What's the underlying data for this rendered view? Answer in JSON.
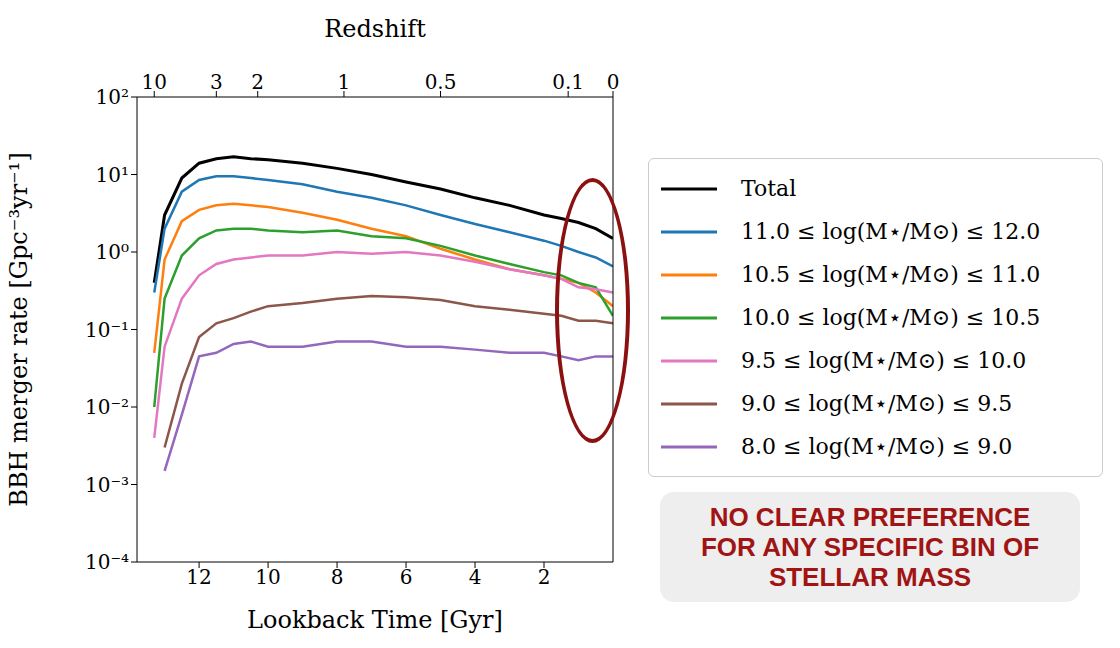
{
  "chart_data": {
    "type": "line",
    "xlabel": "Lookback Time [Gyr]",
    "ylabel": "BBH merger rate [Gpc⁻³yr⁻¹]",
    "x2label": "Redshift",
    "annotation": "NO CLEAR PREFERENCE FOR ANY SPECIFIC BIN OF STELLAR MASS",
    "log": "y",
    "grid": false,
    "legend": "right",
    "xlim": [
      13.8,
      0
    ],
    "xticks": [
      12,
      10,
      8,
      6,
      4,
      2
    ],
    "x2ticks": [
      {
        "value": 13.3,
        "label": "10"
      },
      {
        "value": 11.5,
        "label": "3"
      },
      {
        "value": 10.3,
        "label": "2"
      },
      {
        "value": 7.8,
        "label": "1"
      },
      {
        "value": 5.0,
        "label": "0.5"
      },
      {
        "value": 1.3,
        "label": "0.1"
      },
      {
        "value": 0,
        "label": "0"
      }
    ],
    "ylim": [
      0.0001,
      100
    ],
    "yticks": [
      {
        "value": 0.0001,
        "label": "10⁻⁴"
      },
      {
        "value": 0.001,
        "label": "10⁻³"
      },
      {
        "value": 0.01,
        "label": "10⁻²"
      },
      {
        "value": 0.1,
        "label": "10⁻¹"
      },
      {
        "value": 1,
        "label": "10⁰"
      },
      {
        "value": 10,
        "label": "10¹"
      },
      {
        "value": 100,
        "label": "10²"
      }
    ],
    "x": [
      13.3,
      13.0,
      12.5,
      12,
      11.5,
      11,
      10.5,
      10,
      9,
      8,
      7,
      6,
      5,
      4,
      3,
      2,
      1.5,
      1,
      0.5,
      0
    ],
    "series": [
      {
        "name": "Total",
        "color": "#000000",
        "values": [
          0.4,
          3,
          9,
          14,
          16,
          17,
          16,
          15.5,
          14,
          12,
          10,
          8,
          6.5,
          5,
          4,
          3,
          2.7,
          2.4,
          2,
          1.5
        ]
      },
      {
        "name": "11.0 ≤ log(M⋆/M⊙) ≤ 12.0",
        "color": "#1f77b4",
        "values": [
          0.3,
          2,
          6,
          8.5,
          9.5,
          9.5,
          9,
          8.5,
          7.5,
          6,
          5,
          4,
          3,
          2.3,
          1.8,
          1.4,
          1.2,
          1.0,
          0.85,
          0.65
        ]
      },
      {
        "name": "10.5 ≤ log(M⋆/M⊙) ≤ 11.0",
        "color": "#ff7f0e",
        "values": [
          0.05,
          0.8,
          2.5,
          3.5,
          4.0,
          4.2,
          4.0,
          3.8,
          3.2,
          2.6,
          2.0,
          1.6,
          1.1,
          0.8,
          0.6,
          0.5,
          0.45,
          0.4,
          0.3,
          0.2
        ]
      },
      {
        "name": "10.0 ≤ log(M⋆/M⊙) ≤ 10.5",
        "color": "#2ca02c",
        "values": [
          0.01,
          0.25,
          0.9,
          1.5,
          1.9,
          2.0,
          2.0,
          1.9,
          1.8,
          1.9,
          1.6,
          1.5,
          1.2,
          0.9,
          0.7,
          0.55,
          0.5,
          0.4,
          0.35,
          0.15
        ]
      },
      {
        "name": "9.5 ≤ log(M⋆/M⊙) ≤ 10.0",
        "color": "#e377c2",
        "values": [
          0.004,
          0.06,
          0.25,
          0.5,
          0.7,
          0.8,
          0.85,
          0.9,
          0.9,
          1.0,
          0.95,
          1.0,
          0.9,
          0.75,
          0.6,
          0.5,
          0.45,
          0.35,
          0.33,
          0.3
        ]
      },
      {
        "name": "9.0 ≤ log(M⋆/M⊙) ≤ 9.5",
        "color": "#8c564b",
        "values": [
          null,
          0.003,
          0.02,
          0.08,
          0.12,
          0.14,
          0.17,
          0.2,
          0.22,
          0.25,
          0.27,
          0.26,
          0.24,
          0.2,
          0.18,
          0.16,
          0.15,
          0.13,
          0.13,
          0.12
        ]
      },
      {
        "name": "8.0 ≤ log(M⋆/M⊙) ≤ 9.0",
        "color": "#9467bd",
        "values": [
          null,
          0.0015,
          0.008,
          0.045,
          0.05,
          0.065,
          0.07,
          0.06,
          0.06,
          0.07,
          0.07,
          0.06,
          0.06,
          0.055,
          0.05,
          0.05,
          0.045,
          0.04,
          0.045,
          0.045
        ]
      }
    ]
  }
}
